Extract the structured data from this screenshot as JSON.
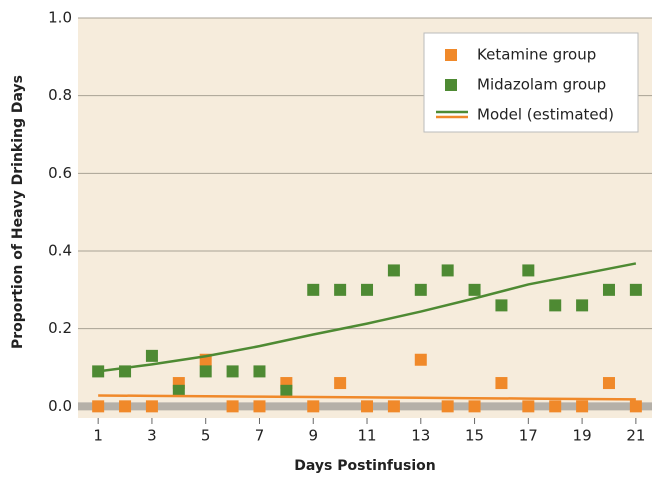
{
  "chart_data": {
    "type": "scatter",
    "x_label": "Days Postinfusion",
    "y_label": "Proportion of Heavy Drinking Days",
    "x": [
      1,
      2,
      3,
      4,
      5,
      6,
      7,
      8,
      9,
      10,
      11,
      12,
      13,
      14,
      15,
      16,
      17,
      18,
      19,
      20,
      21
    ],
    "series": [
      {
        "name": "Ketamine group",
        "color": "#f0892a",
        "values": [
          0,
          0,
          0,
          0.06,
          0.12,
          0,
          0,
          0.06,
          0,
          0.06,
          0,
          0,
          0.12,
          0,
          0,
          0.06,
          0,
          0,
          0,
          0.06,
          0
        ]
      },
      {
        "name": "Midazolam group",
        "color": "#4e8a33",
        "values": [
          0.09,
          0.09,
          0.13,
          0.04,
          0.09,
          0.09,
          0.09,
          0.04,
          0.3,
          0.3,
          0.3,
          0.35,
          0.3,
          0.35,
          0.3,
          0.26,
          0.35,
          0.26,
          0.26,
          0.3,
          0.3
        ]
      }
    ],
    "model": {
      "name": "Model (estimated)",
      "x": [
        1,
        3,
        5,
        7,
        9,
        11,
        13,
        15,
        17,
        19,
        21
      ],
      "lines": [
        {
          "color": "#4e8a33",
          "values": [
            0.09,
            0.108,
            0.129,
            0.155,
            0.185,
            0.213,
            0.244,
            0.278,
            0.314,
            0.341,
            0.368
          ]
        },
        {
          "color": "#f0892a",
          "values": [
            0.028,
            0.027,
            0.026,
            0.025,
            0.024,
            0.023,
            0.022,
            0.021,
            0.02,
            0.019,
            0.018
          ]
        }
      ]
    },
    "xlim": [
      0.25,
      21.6
    ],
    "xticks": [
      1,
      3,
      5,
      7,
      9,
      11,
      13,
      15,
      17,
      19,
      21
    ],
    "ylim": [
      -0.03,
      1.0
    ],
    "yticks": [
      {
        "value": 0,
        "label": "0.0"
      },
      {
        "value": 0.2,
        "label": "0.2"
      },
      {
        "value": 0.4,
        "label": "0.4"
      },
      {
        "value": 0.6,
        "label": "0.6"
      },
      {
        "value": 0.8,
        "label": "0.8"
      },
      {
        "value": 1,
        "label": "1.0"
      }
    ],
    "grid": true,
    "legend_position": "upper right"
  }
}
